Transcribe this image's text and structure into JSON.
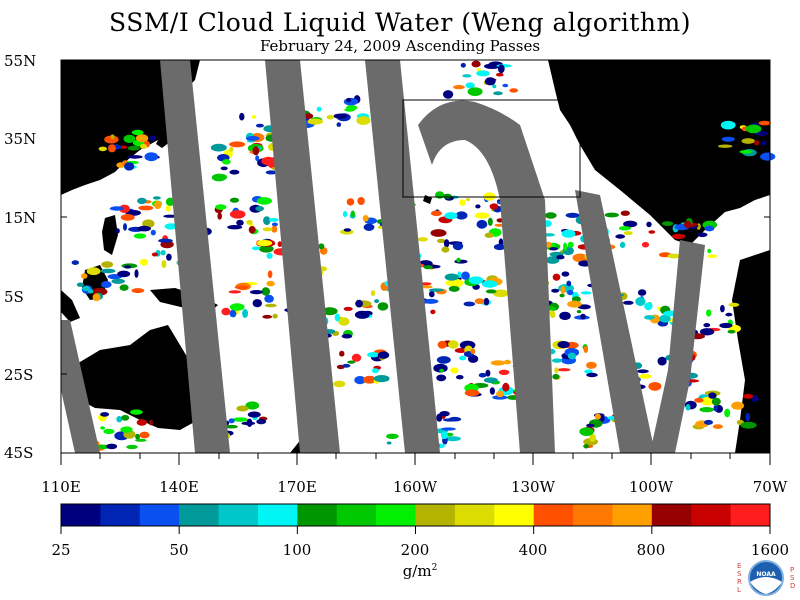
{
  "title": "SSM/I Cloud Liquid Water (Weng algorithm)",
  "subtitle": "February 24, 2009  Ascending Passes",
  "lat_labels": [
    "55N",
    "35N",
    "15N",
    "5S",
    "25S",
    "45S"
  ],
  "lon_labels": [
    "110E",
    "140E",
    "170E",
    "160W",
    "130W",
    "100W",
    "70W"
  ],
  "colorbar": {
    "colors": [
      "#00007f",
      "#0024b4",
      "#0a50f0",
      "#009a9a",
      "#00c8c8",
      "#00f5f5",
      "#009600",
      "#00c800",
      "#00f000",
      "#b4b400",
      "#dcdc00",
      "#ffff00",
      "#ff5000",
      "#ff7800",
      "#ffa000",
      "#960000",
      "#c80000",
      "#ff1e1e"
    ],
    "labels": [
      "25",
      "50",
      "100",
      "200",
      "400",
      "800",
      "1600"
    ],
    "unit": "g/m",
    "unit_sup": "2"
  },
  "logo": {
    "text": "NOAA",
    "left_letters": "ESRL",
    "right_letters": "PSD"
  }
}
